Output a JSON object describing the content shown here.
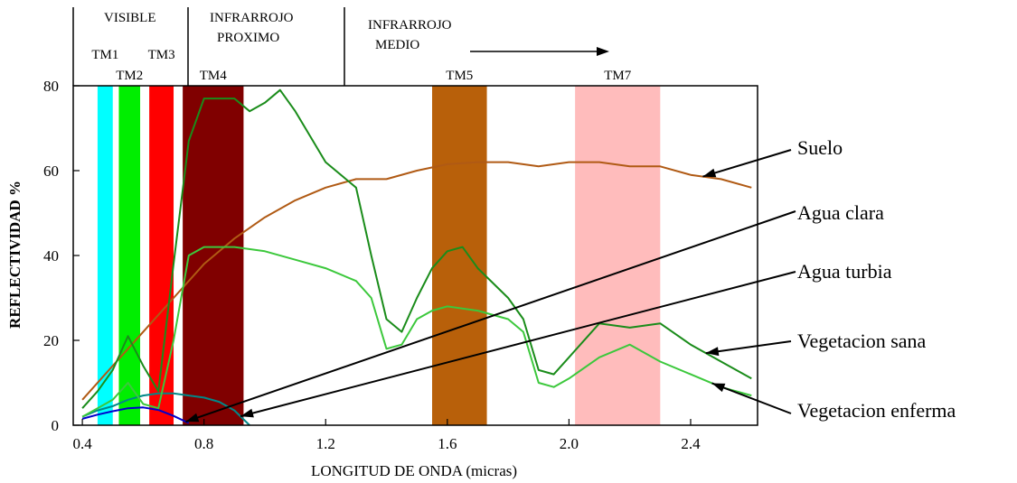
{
  "chart_data": {
    "type": "line",
    "xlabel": "LONGITUD DE ONDA (micras)",
    "ylabel": "REFLECTIVIDAD %",
    "xlim": [
      0.37,
      2.62
    ],
    "ylim": [
      0,
      80
    ],
    "x_ticks": [
      0.4,
      0.8,
      1.2,
      1.6,
      2.0,
      2.4
    ],
    "x_tick_labels": [
      "0.4",
      "0.8",
      "1.2",
      "1.6",
      "2.0",
      "2.4"
    ],
    "y_ticks": [
      0,
      20,
      40,
      60,
      80
    ],
    "y_tick_labels": [
      "0",
      "20",
      "40",
      "60",
      "80"
    ],
    "grid": false,
    "regions": [
      {
        "label": "VISIBLE",
        "x": [
          0.37,
          0.73
        ]
      },
      {
        "label": "INFRARROJO PROXIMO",
        "x": [
          0.73,
          1.3
        ]
      },
      {
        "label": "INFRARROJO MEDIO",
        "x": [
          1.3,
          2.62
        ]
      }
    ],
    "bands": [
      {
        "name": "TM1",
        "x": [
          0.45,
          0.5
        ],
        "color": "#00ffff"
      },
      {
        "name": "TM2",
        "x": [
          0.52,
          0.59
        ],
        "color": "#00ee00"
      },
      {
        "name": "TM3",
        "x": [
          0.62,
          0.7
        ],
        "color": "#ff0000"
      },
      {
        "name": "TM4",
        "x": [
          0.73,
          0.93
        ],
        "color": "#800000"
      },
      {
        "name": "TM5",
        "x": [
          1.55,
          1.73
        ],
        "color": "#b8600a"
      },
      {
        "name": "TM7",
        "x": [
          2.02,
          2.3
        ],
        "color": "#ffbcbc"
      }
    ],
    "series": [
      {
        "name": "Suelo",
        "color": "#b05a14",
        "x": [
          0.4,
          0.5,
          0.6,
          0.7,
          0.8,
          0.9,
          1.0,
          1.1,
          1.2,
          1.3,
          1.4,
          1.5,
          1.6,
          1.7,
          1.8,
          1.9,
          2.0,
          2.1,
          2.2,
          2.3,
          2.4,
          2.5,
          2.6
        ],
        "values": [
          6,
          14,
          22,
          30,
          38,
          44,
          49,
          53,
          56,
          58,
          58,
          60,
          61.5,
          62,
          62,
          61,
          62,
          62,
          61,
          61,
          59,
          58,
          56
        ]
      },
      {
        "name": "Agua clara",
        "color": "#0000cc",
        "x": [
          0.4,
          0.45,
          0.5,
          0.55,
          0.6,
          0.65,
          0.7,
          0.75
        ],
        "values": [
          1.5,
          2.5,
          3.3,
          4.0,
          4.2,
          3.6,
          2.2,
          0.5
        ]
      },
      {
        "name": "Agua turbia",
        "color": "#008888",
        "x": [
          0.4,
          0.45,
          0.5,
          0.55,
          0.6,
          0.65,
          0.7,
          0.75,
          0.8,
          0.85,
          0.9,
          0.95
        ],
        "values": [
          2,
          3.5,
          4.5,
          6,
          7,
          7.5,
          7.5,
          7,
          6.5,
          5.5,
          3.5,
          0
        ]
      },
      {
        "name": "Vegetacion sana",
        "color": "#1a8c1a",
        "x": [
          0.4,
          0.45,
          0.5,
          0.55,
          0.6,
          0.65,
          0.7,
          0.75,
          0.8,
          0.9,
          0.95,
          1.0,
          1.05,
          1.1,
          1.15,
          1.2,
          1.3,
          1.35,
          1.4,
          1.45,
          1.5,
          1.55,
          1.6,
          1.65,
          1.7,
          1.8,
          1.85,
          1.9,
          1.95,
          2.0,
          2.1,
          2.2,
          2.3,
          2.4,
          2.5,
          2.6
        ],
        "values": [
          4,
          8,
          13,
          21,
          14,
          8,
          38,
          67,
          77,
          77,
          74,
          76,
          79,
          74,
          68,
          62,
          56,
          40,
          25,
          22,
          30,
          37,
          41,
          42,
          37,
          30,
          25,
          13,
          12,
          16,
          24,
          23,
          24,
          19,
          15,
          11
        ]
      },
      {
        "name": "Vegetacion enferma",
        "color": "#3cc83c",
        "x": [
          0.4,
          0.45,
          0.5,
          0.55,
          0.6,
          0.65,
          0.7,
          0.75,
          0.8,
          0.9,
          1.0,
          1.1,
          1.2,
          1.3,
          1.35,
          1.4,
          1.45,
          1.5,
          1.55,
          1.6,
          1.7,
          1.8,
          1.85,
          1.9,
          1.95,
          2.0,
          2.1,
          2.2,
          2.3,
          2.4,
          2.5,
          2.6
        ],
        "values": [
          2,
          4,
          6,
          10,
          5,
          4,
          20,
          40,
          42,
          42,
          41,
          39,
          37,
          34,
          30,
          18,
          19,
          25,
          27,
          28,
          27,
          25,
          22,
          10,
          9,
          11,
          16,
          19,
          15,
          12,
          9,
          7
        ]
      }
    ]
  }
}
